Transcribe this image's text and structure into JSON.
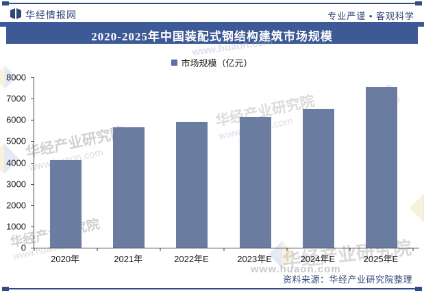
{
  "header": {
    "brand": "华经情报网",
    "tagline": "专业严谨 • 客观科学"
  },
  "title": "2020-2025年中国装配式钢结构建筑市场规模",
  "legend": {
    "label": "市场规模（亿元）",
    "marker_color": "#5D6FA0"
  },
  "chart_data": {
    "type": "bar",
    "title": "2020-2025年中国装配式钢结构建筑市场规模",
    "categories": [
      "2020年",
      "2021年",
      "2022年E",
      "2023年E",
      "2024年E",
      "2025年E"
    ],
    "series": [
      {
        "name": "市场规模（亿元）",
        "values": [
          4100,
          5650,
          5900,
          6150,
          6530,
          7550
        ]
      }
    ],
    "xlabel": "",
    "ylabel": "",
    "ylim": [
      0,
      8000
    ],
    "ytick_step": 1000,
    "grid": false,
    "legend_position": "top",
    "bar_color": "#6A7CA0"
  },
  "footer": {
    "source": "资料来源：华经产业研究院整理"
  },
  "watermarks": {
    "company": "华经产业研究院",
    "site": "www.huaon.com"
  },
  "colors": {
    "banner": "#3D5A96",
    "rule_line": "#2E4C86",
    "header_text": "#2F4878",
    "bar": "#6A7CA0",
    "axis": "#3f3f3f"
  }
}
